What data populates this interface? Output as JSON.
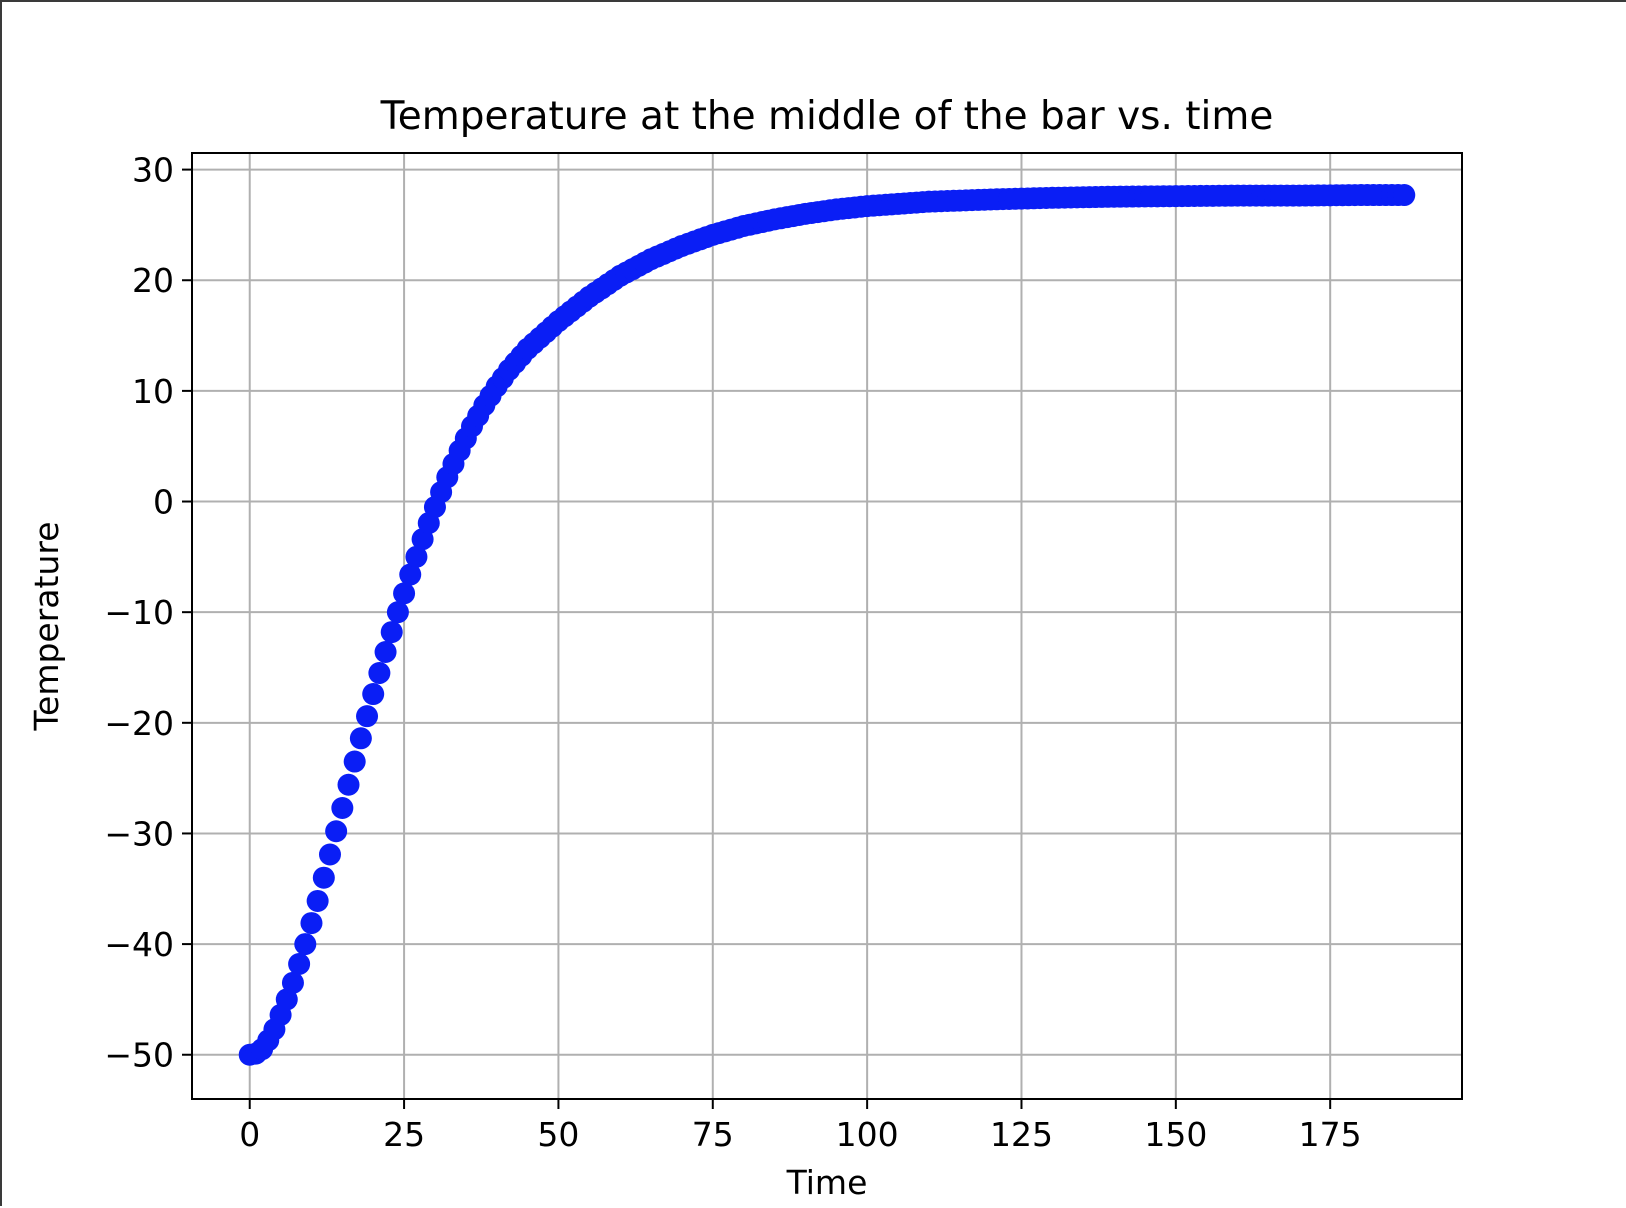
{
  "chart_data": {
    "type": "scatter",
    "title": "Temperature at the middle of the bar vs. time",
    "xlabel": "Time",
    "ylabel": "Temperature",
    "xlim": [
      -9.35,
      196.35
    ],
    "ylim": [
      -54,
      31.5
    ],
    "xticks": [
      0,
      25,
      50,
      75,
      100,
      125,
      150,
      175
    ],
    "yticks": [
      -50,
      -40,
      -30,
      -20,
      -10,
      0,
      10,
      20,
      30
    ],
    "xtick_labels": [
      "0",
      "25",
      "50",
      "75",
      "100",
      "125",
      "150",
      "175"
    ],
    "ytick_labels": [
      "−50",
      "−40",
      "−30",
      "−20",
      "−10",
      "0",
      "10",
      "20",
      "30"
    ],
    "grid": true,
    "marker_color": "#0a1ef5",
    "series": [
      {
        "x": [
          0,
          1,
          2,
          3,
          4,
          5,
          6,
          7,
          8,
          9,
          10,
          11,
          12,
          13,
          14,
          15,
          16,
          17,
          18,
          19,
          20,
          22,
          24,
          26,
          28,
          30,
          32,
          34,
          36,
          38,
          40,
          42,
          45,
          50,
          55,
          60,
          65,
          70,
          75,
          80,
          85,
          90,
          95,
          100,
          110,
          120,
          130,
          140,
          150,
          160,
          170,
          180,
          187
        ],
        "values": [
          -50.0,
          -49.9,
          -49.5,
          -48.7,
          -47.7,
          -46.4,
          -45.0,
          -43.5,
          -41.8,
          -40.0,
          -38.1,
          -36.1,
          -34.0,
          -31.9,
          -29.8,
          -27.7,
          -25.6,
          -23.5,
          -21.4,
          -19.4,
          -17.4,
          -13.6,
          -10.0,
          -6.6,
          -3.4,
          -0.5,
          2.2,
          4.6,
          6.8,
          8.7,
          10.4,
          11.9,
          13.8,
          16.3,
          18.5,
          20.4,
          21.9,
          23.1,
          24.1,
          24.9,
          25.5,
          26.0,
          26.4,
          26.7,
          27.1,
          27.3,
          27.45,
          27.55,
          27.6,
          27.65,
          27.65,
          27.7,
          27.7
        ]
      }
    ]
  }
}
